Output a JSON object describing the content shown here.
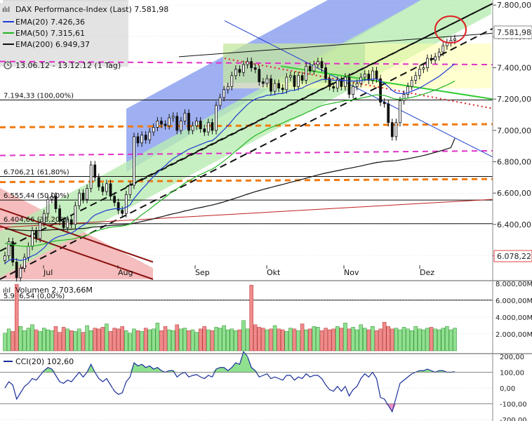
{
  "header": {
    "title": "DAX Performance-Index (Last) 7.581,98",
    "ema20": "EMA(20) 7.426,36",
    "ema50": "EMA(50) 7.315,61",
    "ema200": "EMA(200) 6.949,37",
    "range": "13.06.12 - 13.12.12 (1 Tag)"
  },
  "colors": {
    "ema20": "#1f3bd6",
    "ema50": "#22b522",
    "ema200": "#111111",
    "up": "#8fe08f",
    "down": "#f08a8a",
    "channel_blue": "#8ea2f0",
    "channel_green": "#b8ecb2",
    "band_yellow": "#ffffa8",
    "magenta": "#e030c8",
    "orange": "#f07a10",
    "red_marker": "#dd2222"
  },
  "fib_labels": [
    {
      "text": "7.194,33 (100,00%)",
      "value": 7194.33
    },
    {
      "text": "6.706,21 (61,80%)",
      "value": 6706.21
    },
    {
      "text": "6.555,44 (50,00%)",
      "value": 6555.44
    },
    {
      "text": "6.404,66 (38,20%)",
      "value": 6404.66
    },
    {
      "text": "5.916,54 (0,00%)",
      "value": 5916.54
    }
  ],
  "price_axis": {
    "ticks": [
      "7.800,00",
      "7.600,00",
      "7.400,00",
      "7.200,00",
      "7.000,00",
      "6.800,00",
      "6.600,00",
      "6.400,00",
      "6.200,00"
    ],
    "last_label": "7.581,98",
    "low_label": "6.078,22"
  },
  "months": [
    "Jul",
    "Aug",
    "Sep",
    "Okt",
    "Nov",
    "Dez"
  ],
  "volume": {
    "label": "Volumen 2.703,66M",
    "ticks": [
      "8.000,00M",
      "6.000,00M",
      "4.000,00M",
      "2.000,00M"
    ]
  },
  "cci": {
    "label": "CCI(20) 102,60",
    "ticks": [
      "200,00",
      "100,00",
      "0,00",
      "-100,00",
      "-200,00"
    ]
  },
  "chart_data": [
    {
      "type": "candlestick",
      "title": "DAX Performance-Index (Last) 7.581,98",
      "ylim": [
        6050,
        7810
      ],
      "series_close": [
        6200,
        6290,
        6160,
        6060,
        6120,
        6190,
        6260,
        6360,
        6310,
        6410,
        6470,
        6560,
        6580,
        6500,
        6420,
        6380,
        6430,
        6400,
        6520,
        6600,
        6560,
        6630,
        6780,
        6700,
        6640,
        6610,
        6660,
        6580,
        6540,
        6490,
        6470,
        6590,
        6650,
        6960,
        6920,
        6970,
        6940,
        6990,
        7020,
        7060,
        7040,
        7030,
        7080,
        7090,
        7000,
        7060,
        7110,
        7000,
        7030,
        7060,
        7010,
        6990,
        7050,
        7000,
        7160,
        7210,
        7260,
        7280,
        7350,
        7390,
        7370,
        7420,
        7440,
        7400,
        7390,
        7310,
        7300,
        7330,
        7250,
        7300,
        7270,
        7260,
        7340,
        7350,
        7280,
        7350,
        7320,
        7410,
        7380,
        7420,
        7440,
        7400,
        7330,
        7280,
        7270,
        7320,
        7280,
        7340,
        7230,
        7280,
        7300,
        7340,
        7360,
        7320,
        7380,
        7330,
        7180,
        7170,
        7050,
        6960,
        7050,
        7190,
        7230,
        7280,
        7320,
        7350,
        7390,
        7400,
        7460,
        7450,
        7470,
        7500,
        7540,
        7560,
        7575,
        7585
      ],
      "ema20": [
        6150,
        6170,
        6180,
        6175,
        6170,
        6175,
        6185,
        6200,
        6210,
        6230,
        6250,
        6280,
        6300,
        6315,
        6325,
        6330,
        6340,
        6345,
        6360,
        6380,
        6395,
        6410,
        6440,
        6460,
        6470,
        6480,
        6490,
        6495,
        6500,
        6500,
        6500,
        6510,
        6525,
        6565,
        6595,
        6625,
        6650,
        6680,
        6705,
        6730,
        6755,
        6775,
        6800,
        6820,
        6835,
        6850,
        6865,
        6880,
        6890,
        6900,
        6910,
        6920,
        6930,
        6935,
        6955,
        6980,
        7005,
        7030,
        7060,
        7090,
        7115,
        7140,
        7165,
        7185,
        7200,
        7210,
        7215,
        7225,
        7225,
        7230,
        7235,
        7235,
        7245,
        7255,
        7255,
        7265,
        7270,
        7285,
        7295,
        7305,
        7315,
        7325,
        7325,
        7325,
        7320,
        7320,
        7320,
        7320,
        7315,
        7315,
        7315,
        7318,
        7322,
        7323,
        7328,
        7328,
        7315,
        7300,
        7280,
        7255,
        7240,
        7235,
        7235,
        7240,
        7250,
        7260,
        7270,
        7285,
        7300,
        7315,
        7330,
        7345,
        7365,
        7385,
        7405,
        7426
      ],
      "ema50": [
        6280,
        6275,
        6270,
        6265,
        6262,
        6260,
        6260,
        6262,
        6265,
        6270,
        6275,
        6282,
        6290,
        6295,
        6298,
        6300,
        6303,
        6305,
        6310,
        6318,
        6323,
        6330,
        6345,
        6355,
        6363,
        6370,
        6377,
        6382,
        6385,
        6387,
        6389,
        6395,
        6402,
        6423,
        6442,
        6462,
        6480,
        6498,
        6518,
        6537,
        6556,
        6574,
        6594,
        6613,
        6628,
        6645,
        6664,
        6678,
        6692,
        6707,
        6719,
        6730,
        6743,
        6753,
        6769,
        6787,
        6806,
        6825,
        6846,
        6868,
        6888,
        6910,
        6931,
        6950,
        6968,
        6981,
        6994,
        7008,
        7018,
        7029,
        7038,
        7047,
        7059,
        7071,
        7080,
        7091,
        7100,
        7113,
        7124,
        7135,
        7148,
        7158,
        7165,
        7170,
        7174,
        7180,
        7184,
        7190,
        7192,
        7196,
        7200,
        7206,
        7212,
        7216,
        7223,
        7227,
        7225,
        7223,
        7216,
        7206,
        7200,
        7200,
        7202,
        7206,
        7211,
        7217,
        7224,
        7231,
        7240,
        7249,
        7258,
        7268,
        7279,
        7290,
        7302,
        7316
      ],
      "ema200": [
        6370,
        6369,
        6367,
        6365,
        6363,
        6362,
        6361,
        6361,
        6361,
        6361,
        6362,
        6364,
        6366,
        6367,
        6368,
        6368,
        6369,
        6369,
        6371,
        6373,
        6374,
        6377,
        6381,
        6384,
        6386,
        6389,
        6391,
        6393,
        6395,
        6396,
        6397,
        6399,
        6402,
        6408,
        6413,
        6419,
        6424,
        6430,
        6436,
        6443,
        6449,
        6455,
        6462,
        6468,
        6473,
        6479,
        6486,
        6491,
        6497,
        6503,
        6508,
        6513,
        6519,
        6524,
        6530,
        6537,
        6544,
        6552,
        6560,
        6568,
        6576,
        6585,
        6593,
        6601,
        6609,
        6616,
        6623,
        6630,
        6636,
        6643,
        6649,
        6655,
        6662,
        6669,
        6675,
        6682,
        6688,
        6695,
        6702,
        6709,
        6716,
        6722,
        6728,
        6733,
        6738,
        6743,
        6748,
        6754,
        6758,
        6763,
        6768,
        6773,
        6779,
        6784,
        6790,
        6795,
        6798,
        6802,
        6804,
        6805,
        6807,
        6811,
        6815,
        6819,
        6824,
        6829,
        6834,
        6840,
        6846,
        6853,
        6860,
        6867,
        6874,
        6882,
        6890,
        6949
      ]
    },
    {
      "type": "bar",
      "title": "Volumen 2.703,66M",
      "ylim": [
        0,
        8000
      ],
      "values": [
        2100,
        2600,
        2300,
        7900,
        2900,
        2400,
        2700,
        3100,
        2500,
        2300,
        2700,
        2500,
        2400,
        2900,
        2200,
        2800,
        2600,
        2400,
        2300,
        2600,
        2200,
        3000,
        2400,
        2700,
        2600,
        2800,
        3200,
        2300,
        2700,
        2600,
        2900,
        2400,
        2100,
        2600,
        2400,
        2300,
        2700,
        2500,
        2600,
        3300,
        2400,
        2900,
        2500,
        2400,
        3100,
        2600,
        2700,
        2400,
        2500,
        2200,
        2600,
        2900,
        2500,
        2400,
        2800,
        2700,
        3000,
        2500,
        2600,
        2400,
        2500,
        3600,
        2600,
        7800,
        3100,
        2800,
        2700,
        2500,
        2600,
        3000,
        2600,
        2500,
        2300,
        2700,
        2600,
        2400,
        3200,
        2500,
        2600,
        2900,
        2800,
        2400,
        2700,
        2500,
        2600,
        2900,
        2700,
        3300,
        2600,
        2800,
        2500,
        3100,
        2700,
        2500,
        2900,
        2400,
        2600,
        3400,
        2900,
        2600,
        2700,
        2500,
        2800,
        2600,
        2400,
        2900,
        2600,
        2500,
        2700,
        2800,
        2600,
        2500,
        2700,
        2900,
        2500,
        2700
      ]
    },
    {
      "type": "line",
      "title": "CCI(20) 102,60",
      "ylim": [
        -200,
        200
      ],
      "values": [
        0,
        40,
        20,
        -70,
        -30,
        10,
        30,
        60,
        50,
        80,
        110,
        130,
        120,
        80,
        40,
        30,
        50,
        40,
        70,
        100,
        70,
        100,
        150,
        100,
        60,
        40,
        60,
        20,
        -20,
        -40,
        -30,
        40,
        70,
        160,
        140,
        150,
        130,
        140,
        120,
        130,
        110,
        100,
        110,
        110,
        70,
        90,
        100,
        70,
        80,
        85,
        70,
        60,
        80,
        70,
        120,
        130,
        130,
        110,
        130,
        160,
        150,
        230,
        200,
        130,
        110,
        70,
        80,
        90,
        60,
        70,
        60,
        50,
        80,
        80,
        50,
        70,
        60,
        90,
        70,
        80,
        80,
        60,
        20,
        -10,
        -20,
        10,
        -20,
        10,
        -50,
        -10,
        10,
        60,
        90,
        70,
        100,
        60,
        -60,
        -70,
        -110,
        -150,
        -60,
        30,
        50,
        70,
        90,
        100,
        110,
        110,
        120,
        110,
        100,
        110,
        110,
        100,
        100,
        103
      ]
    }
  ]
}
